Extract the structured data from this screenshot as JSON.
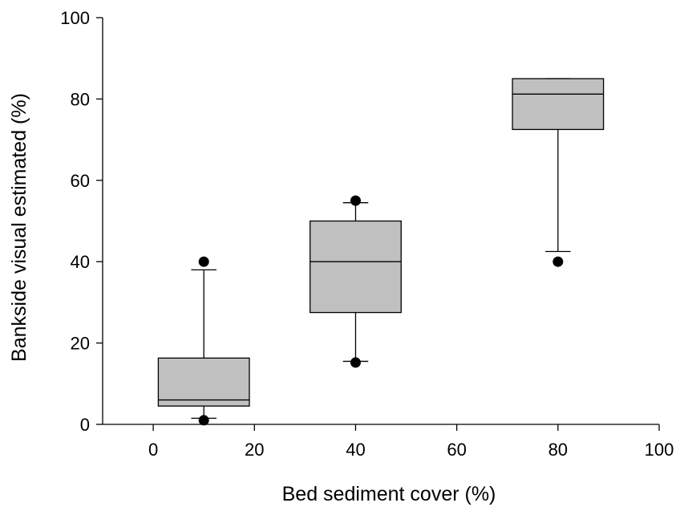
{
  "chart_data": {
    "type": "box",
    "title": "",
    "xlabel": "Bed sediment cover (%)",
    "ylabel": "Bankside visual estimated (%)",
    "xlim": [
      -10,
      100
    ],
    "ylim": [
      0,
      100
    ],
    "xticks": [
      0,
      20,
      40,
      60,
      80,
      100
    ],
    "yticks": [
      0,
      20,
      40,
      60,
      80,
      100
    ],
    "grid": false,
    "legend": "none",
    "box_color": "#c0c0c0",
    "boxes": [
      {
        "x": 10,
        "q1": 4.5,
        "median": 6,
        "q3": 16.3,
        "whisker_low": 1.5,
        "whisker_high": 38,
        "outliers": [
          40,
          1
        ]
      },
      {
        "x": 40,
        "q1": 27.5,
        "median": 40,
        "q3": 50,
        "whisker_low": 15.5,
        "whisker_high": 54.5,
        "outliers": [
          55,
          15.2
        ]
      },
      {
        "x": 80,
        "q1": 72.5,
        "median": 81.2,
        "q3": 85,
        "whisker_low": 42.5,
        "whisker_high": 85,
        "outliers": [
          40
        ]
      }
    ]
  }
}
